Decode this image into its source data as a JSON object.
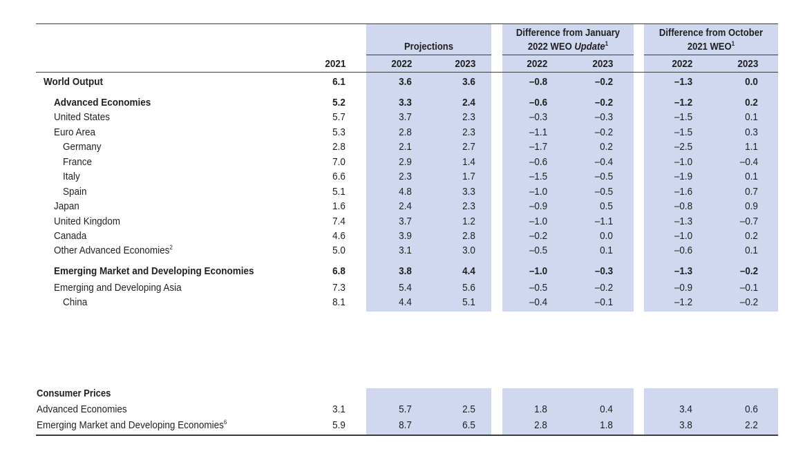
{
  "header": {
    "projections": "Projections",
    "diff_jan_line1": "Difference from January",
    "diff_jan_line2_prefix": "2022 WEO ",
    "diff_jan_line2_italic": "Update",
    "diff_jan_sup": "1",
    "diff_oct_line1": "Difference from October",
    "diff_oct_line2": "2021 WEO",
    "diff_oct_sup": "1",
    "years": [
      "2021",
      "2022",
      "2023",
      "2022",
      "2023",
      "2022",
      "2023"
    ]
  },
  "rows": [
    {
      "label": "World Output",
      "sup": "",
      "bold": true,
      "indent": 0,
      "values": [
        "6.1",
        "3.6",
        "3.6",
        "–0.8",
        "–0.2",
        "–1.3",
        "0.0"
      ]
    },
    {
      "label": "Advanced Economies",
      "sup": "",
      "bold": true,
      "indent": 1,
      "values": [
        "5.2",
        "3.3",
        "2.4",
        "–0.6",
        "–0.2",
        "–1.2",
        "0.2"
      ]
    },
    {
      "label": "United States",
      "sup": "",
      "bold": false,
      "indent": 1,
      "values": [
        "5.7",
        "3.7",
        "2.3",
        "–0.3",
        "–0.3",
        "–1.5",
        "0.1"
      ]
    },
    {
      "label": "Euro Area",
      "sup": "",
      "bold": false,
      "indent": 1,
      "values": [
        "5.3",
        "2.8",
        "2.3",
        "–1.1",
        "–0.2",
        "–1.5",
        "0.3"
      ]
    },
    {
      "label": "Germany",
      "sup": "",
      "bold": false,
      "indent": 2,
      "values": [
        "2.8",
        "2.1",
        "2.7",
        "–1.7",
        "0.2",
        "–2.5",
        "1.1"
      ]
    },
    {
      "label": "France",
      "sup": "",
      "bold": false,
      "indent": 2,
      "values": [
        "7.0",
        "2.9",
        "1.4",
        "–0.6",
        "–0.4",
        "–1.0",
        "–0.4"
      ]
    },
    {
      "label": "Italy",
      "sup": "",
      "bold": false,
      "indent": 2,
      "values": [
        "6.6",
        "2.3",
        "1.7",
        "–1.5",
        "–0.5",
        "–1.9",
        "0.1"
      ]
    },
    {
      "label": "Spain",
      "sup": "",
      "bold": false,
      "indent": 2,
      "values": [
        "5.1",
        "4.8",
        "3.3",
        "–1.0",
        "–0.5",
        "–1.6",
        "0.7"
      ]
    },
    {
      "label": "Japan",
      "sup": "",
      "bold": false,
      "indent": 1,
      "values": [
        "1.6",
        "2.4",
        "2.3",
        "–0.9",
        "0.5",
        "–0.8",
        "0.9"
      ]
    },
    {
      "label": "United Kingdom",
      "sup": "",
      "bold": false,
      "indent": 1,
      "values": [
        "7.4",
        "3.7",
        "1.2",
        "–1.0",
        "–1.1",
        "–1.3",
        "–0.7"
      ]
    },
    {
      "label": "Canada",
      "sup": "",
      "bold": false,
      "indent": 1,
      "values": [
        "4.6",
        "3.9",
        "2.8",
        "–0.2",
        "0.0",
        "–1.0",
        "0.2"
      ]
    },
    {
      "label": "Other Advanced Economies",
      "sup": "2",
      "bold": false,
      "indent": 1,
      "values": [
        "5.0",
        "3.1",
        "3.0",
        "–0.5",
        "0.1",
        "–0.6",
        "0.1"
      ]
    },
    {
      "label": "Emerging Market and Developing Economies",
      "sup": "",
      "bold": true,
      "indent": 1,
      "values": [
        "6.8",
        "3.8",
        "4.4",
        "–1.0",
        "–0.3",
        "–1.3",
        "–0.2"
      ]
    },
    {
      "label": "Emerging and Developing Asia",
      "sup": "",
      "bold": false,
      "indent": 1,
      "values": [
        "7.3",
        "5.4",
        "5.6",
        "–0.5",
        "–0.2",
        "–0.9",
        "–0.1"
      ]
    },
    {
      "label": "China",
      "sup": "",
      "bold": false,
      "indent": 2,
      "values": [
        "8.1",
        "4.4",
        "5.1",
        "–0.4",
        "–0.1",
        "–1.2",
        "–0.2"
      ]
    }
  ],
  "consumer_prices": {
    "title": "Consumer Prices",
    "rows": [
      {
        "label": "Advanced Economies",
        "sup": "",
        "values": [
          "3.1",
          "5.7",
          "2.5",
          "1.8",
          "0.4",
          "3.4",
          "0.6"
        ]
      },
      {
        "label": "Emerging Market and Developing Economies",
        "sup": "6",
        "values": [
          "5.9",
          "8.7",
          "6.5",
          "2.8",
          "1.8",
          "3.8",
          "2.2"
        ]
      }
    ]
  }
}
